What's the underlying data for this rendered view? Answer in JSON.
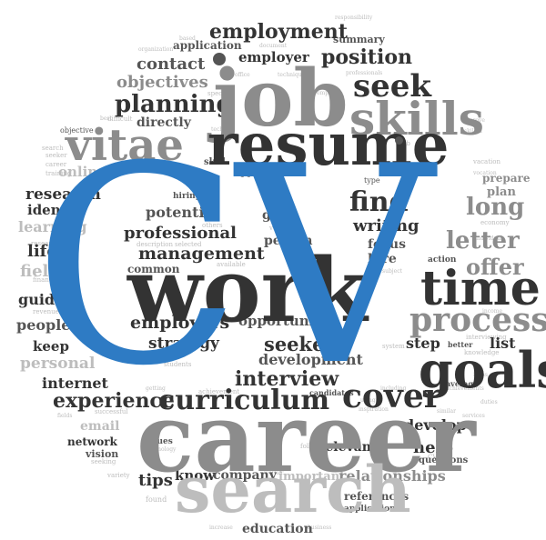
{
  "colors": {
    "dark": "#333333",
    "medium": "#555555",
    "gray": "#8c8c8c",
    "light": "#bdbdbd",
    "accent_blue": "#2e7bc4",
    "background": "#ffffff"
  },
  "words": {
    "cv": "CV",
    "job": "job",
    "resume": "resume",
    "work": "work",
    "career": "career",
    "search": "search",
    "time": "time",
    "skills": "skills",
    "vitae": "vitae",
    "goals": "goals",
    "process": "process",
    "cover": "cover",
    "curriculum": "curriculum",
    "employment": "employment",
    "employer": "employer",
    "position": "position",
    "seek": "seek",
    "contact": "contact",
    "objectives": "objectives",
    "planning": "planning",
    "directly": "directly",
    "online": "online",
    "research": "research",
    "identify": "identify",
    "learning": "learning",
    "life": "life",
    "field": "field",
    "guide": "guide",
    "people": "people",
    "keep": "keep",
    "personal": "personal",
    "internet": "internet",
    "experience": "experience",
    "email": "email",
    "network": "network",
    "vision": "vision",
    "find": "find",
    "long": "long",
    "writing": "writing",
    "letter": "letter",
    "offer": "offer",
    "list": "list",
    "focus": "focus",
    "hire": "hire",
    "step": "step",
    "interview": "interview",
    "seekers": "seekers",
    "development": "development",
    "employers": "employers",
    "opportunity": "opportunity",
    "strategy": "strategy",
    "management": "management",
    "professional": "professional",
    "potential": "potential",
    "common": "common",
    "goal": "goal",
    "person": "person",
    "develop": "develop",
    "help": "help",
    "relevant": "relevant",
    "tips": "tips",
    "know": "know",
    "company": "company",
    "important": "important",
    "relationships": "relationships",
    "references": "references",
    "applications": "applications",
    "education": "education",
    "application": "application",
    "summary": "summary",
    "skill": "skill",
    "applying": "applying",
    "type": "type",
    "prepare": "prepare",
    "plan": "plan",
    "economy": "economy",
    "action": "action",
    "interviewing": "interviewing",
    "better": "better",
    "average": "average",
    "questions": "questions",
    "values": "values",
    "candidates": "candidates",
    "achievement": "achievement",
    "successful": "successful",
    "occupation": "occupation",
    "best": "best",
    "objective": "objective",
    "difficult": "difficult",
    "special": "special",
    "hiring": "hiring",
    "active": "active",
    "volunteer": "volunteer",
    "others": "others",
    "selected": "selected",
    "description": "description",
    "available": "available",
    "students": "students",
    "system": "system",
    "knowledge": "knowledge",
    "follow": "follow",
    "seeking": "seeking",
    "variety": "variety",
    "found": "found",
    "technology": "technology",
    "professionals": "professionals",
    "office": "office",
    "techniques": "techniques",
    "document": "document",
    "recruitment": "recruitment",
    "responsibility": "responsibility",
    "seeker": "seeker",
    "career_small": "career",
    "training": "training",
    "search_small": "search",
    "researching": "researching",
    "financial": "financial",
    "revenue": "revenue",
    "based": "based",
    "improve": "improve",
    "individual": "individual",
    "subject": "subject",
    "including": "including",
    "getting": "getting",
    "using": "using",
    "inspiration": "inspiration",
    "achievements": "achievements",
    "duties": "duties",
    "similar": "similar",
    "services": "services",
    "fields": "fields",
    "worker": "worker",
    "increase": "increase",
    "business": "business",
    "employ": "employ",
    "vocation": "vocation",
    "skilled": "skilled",
    "organization": "organization",
    "income": "income",
    "ideas": "ideas",
    "tech": "tech",
    "vacation": "vacation",
    "job_small": "job",
    "cv_small": "CV"
  }
}
